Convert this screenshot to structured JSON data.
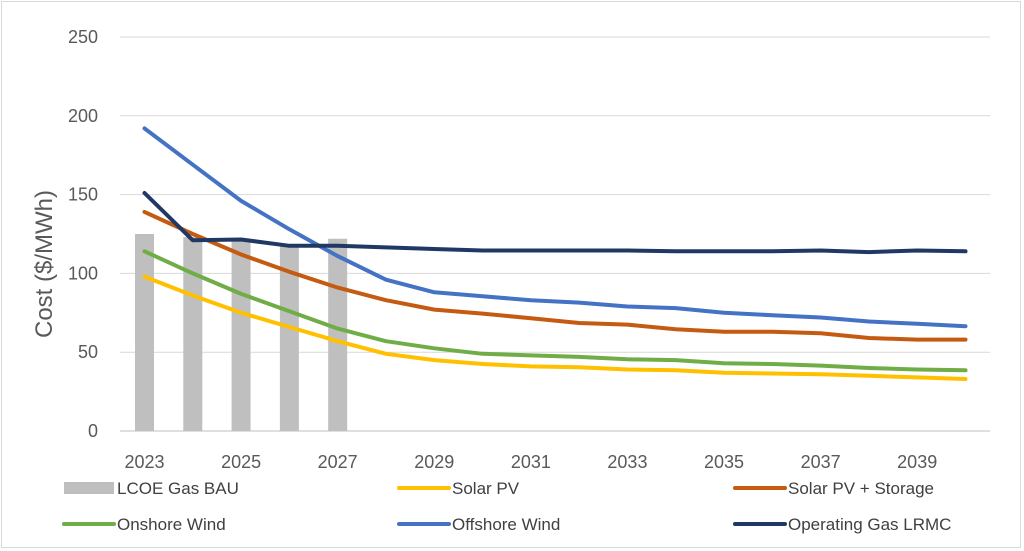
{
  "chart_data": {
    "type": "bar+line",
    "title": "",
    "xlabel": "",
    "ylabel": "Cost ($/MWh)",
    "ylim": [
      0,
      250
    ],
    "yticks": [
      0,
      50,
      100,
      150,
      200,
      250
    ],
    "x": [
      2023,
      2024,
      2025,
      2026,
      2027,
      2028,
      2029,
      2030,
      2031,
      2032,
      2033,
      2034,
      2035,
      2036,
      2037,
      2038,
      2039,
      2040
    ],
    "xtick_labels": [
      "2023",
      "2025",
      "2027",
      "2029",
      "2031",
      "2033",
      "2035",
      "2037",
      "2039"
    ],
    "grid": "horizontal",
    "legend_position": "bottom",
    "bars": {
      "name": "LCOE Gas BAU",
      "color": "#bfbfbf",
      "x": [
        2023,
        2024,
        2025,
        2026,
        2027
      ],
      "values": [
        125,
        123,
        121,
        118,
        122
      ]
    },
    "series": [
      {
        "name": "Solar PV",
        "color": "#ffc000",
        "values": [
          98,
          86,
          75,
          66,
          57,
          49,
          45,
          42.5,
          41,
          40.5,
          39,
          38.5,
          37,
          36.5,
          36,
          35,
          34,
          33
        ]
      },
      {
        "name": "Solar PV + Storage",
        "color": "#c55a11",
        "values": [
          139,
          125,
          112,
          101,
          91,
          83,
          77,
          74.5,
          71.5,
          68.5,
          67.5,
          64.5,
          63,
          63,
          62,
          59,
          58,
          58
        ]
      },
      {
        "name": "Onshore Wind",
        "color": "#70ad47",
        "values": [
          114,
          100,
          87,
          76,
          65,
          57,
          52.5,
          49,
          48,
          47,
          45.5,
          45,
          43,
          42.5,
          41.5,
          40,
          39,
          38.5
        ]
      },
      {
        "name": "Offshore Wind",
        "color": "#4472c4",
        "values": [
          192,
          169,
          146,
          128,
          111,
          96,
          88,
          85.5,
          83,
          81.5,
          79,
          78,
          75,
          73.5,
          72,
          69.5,
          68,
          66.5
        ]
      },
      {
        "name": "Operating Gas LRMC",
        "color": "#203864",
        "values": [
          151,
          121,
          121.5,
          117.5,
          117.5,
          116.5,
          115.5,
          114.5,
          114.5,
          114.5,
          114.5,
          114,
          114,
          114,
          114.5,
          113.5,
          114.5,
          114
        ]
      }
    ]
  }
}
